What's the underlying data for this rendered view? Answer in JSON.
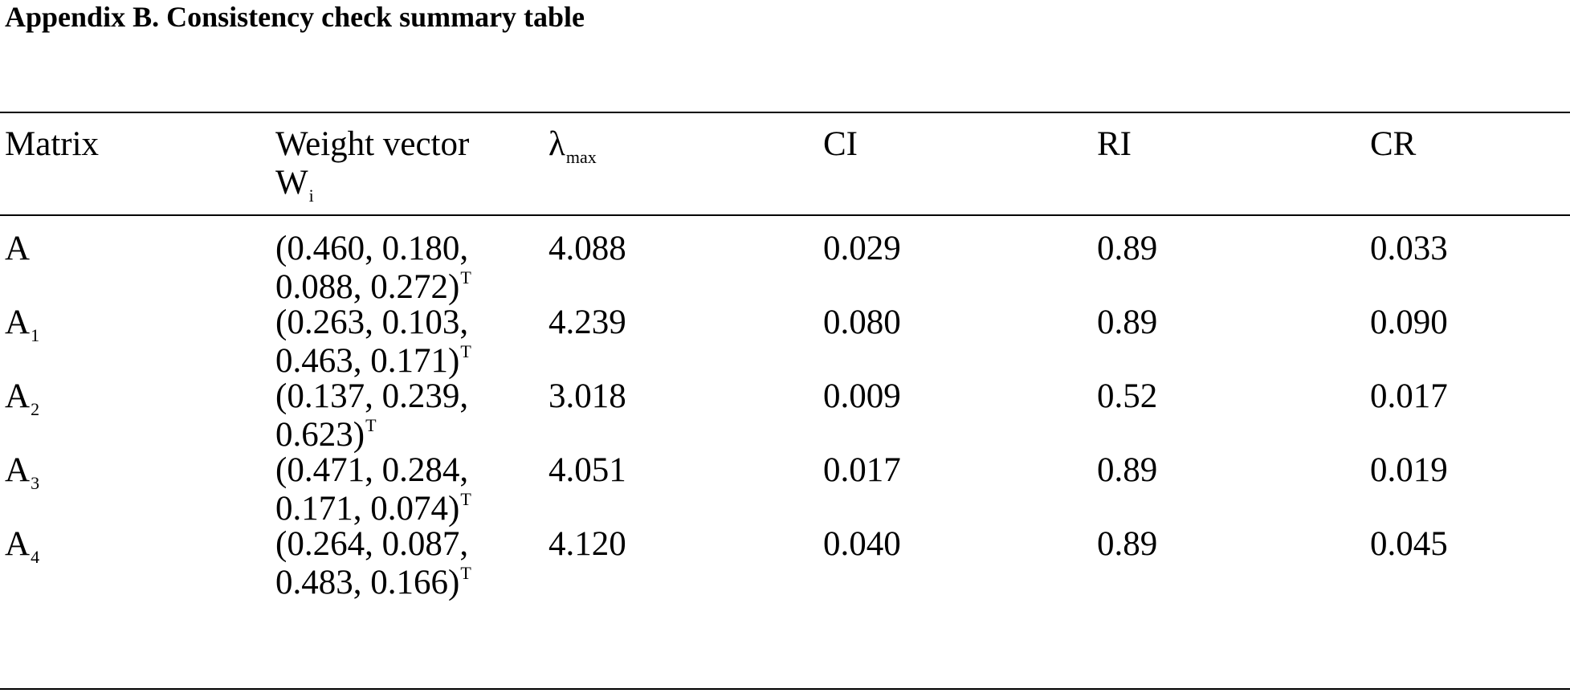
{
  "title": "Appendix B.  Consistency check summary table",
  "table": {
    "headers": {
      "matrix": "Matrix",
      "weight_line1": "Weight vector",
      "weight_line2_base": "W",
      "weight_line2_sub": "i",
      "lambda_base": "λ",
      "lambda_sub": "max",
      "ci": "CI",
      "ri": "RI",
      "cr": "CR"
    },
    "rows": [
      {
        "matrix_base": "A",
        "matrix_sub": "",
        "weight_line1": "(0.460, 0.180,",
        "weight_line2": "0.088, 0.272)",
        "weight_sup": "T",
        "lambda_max": "4.088",
        "ci": "0.029",
        "ri": "0.89",
        "cr": "0.033"
      },
      {
        "matrix_base": "A",
        "matrix_sub": "1",
        "weight_line1": "(0.263, 0.103,",
        "weight_line2": "0.463, 0.171)",
        "weight_sup": "T",
        "lambda_max": "4.239",
        "ci": "0.080",
        "ri": "0.89",
        "cr": "0.090"
      },
      {
        "matrix_base": "A",
        "matrix_sub": "2",
        "weight_line1": "(0.137, 0.239,",
        "weight_line2": "0.623)",
        "weight_sup": "T",
        "lambda_max": "3.018",
        "ci": "0.009",
        "ri": "0.52",
        "cr": "0.017"
      },
      {
        "matrix_base": "A",
        "matrix_sub": "3",
        "weight_line1": "(0.471, 0.284,",
        "weight_line2": "0.171, 0.074)",
        "weight_sup": "T",
        "lambda_max": "4.051",
        "ci": "0.017",
        "ri": "0.89",
        "cr": "0.019"
      },
      {
        "matrix_base": "A",
        "matrix_sub": "4",
        "weight_line1": "(0.264, 0.087,",
        "weight_line2": "0.483, 0.166)",
        "weight_sup": "T",
        "lambda_max": "4.120",
        "ci": "0.040",
        "ri": "0.89",
        "cr": "0.045"
      }
    ]
  }
}
